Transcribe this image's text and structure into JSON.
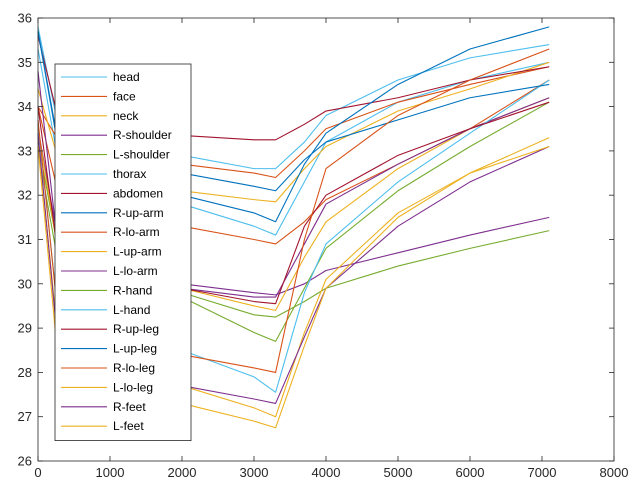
{
  "chart_data": {
    "type": "line",
    "title": "",
    "xlabel": "",
    "ylabel": "",
    "xlim": [
      0,
      8000
    ],
    "ylim": [
      26,
      36
    ],
    "x_ticks": [
      0,
      1000,
      2000,
      3000,
      4000,
      5000,
      6000,
      7000,
      8000
    ],
    "y_ticks": [
      26,
      27,
      28,
      29,
      30,
      31,
      32,
      33,
      34,
      35,
      36
    ],
    "grid": false,
    "legend_position": "top-left",
    "colors": [
      "#4DBEEE",
      "#D95319",
      "#EDB120",
      "#7E2F8E",
      "#77AC30",
      "#4DBEEE",
      "#A2142F",
      "#0072BD",
      "#D95319",
      "#EDB120",
      "#7E2F8E",
      "#77AC30",
      "#4DBEEE",
      "#A2142F",
      "#0072BD",
      "#D95319",
      "#EDB120",
      "#7E2F8E",
      "#EDB120"
    ],
    "series": [
      {
        "name": "head",
        "points": [
          [
            0,
            35.3
          ],
          [
            300,
            32.6
          ],
          [
            1000,
            32.3
          ],
          [
            2000,
            31.8
          ],
          [
            3000,
            31.3
          ],
          [
            3300,
            31.1
          ],
          [
            3700,
            32.3
          ],
          [
            4000,
            33.2
          ],
          [
            5000,
            34.1
          ],
          [
            6000,
            34.6
          ],
          [
            7100,
            35.0
          ]
        ]
      },
      {
        "name": "face",
        "points": [
          [
            0,
            34.0
          ],
          [
            300,
            33.2
          ],
          [
            1000,
            33.0
          ],
          [
            2000,
            32.7
          ],
          [
            3000,
            32.5
          ],
          [
            3300,
            32.4
          ],
          [
            3700,
            33.0
          ],
          [
            4000,
            33.5
          ],
          [
            5000,
            34.1
          ],
          [
            6000,
            34.5
          ],
          [
            7100,
            34.9
          ]
        ]
      },
      {
        "name": "neck",
        "points": [
          [
            0,
            34.4
          ],
          [
            300,
            32.7
          ],
          [
            1000,
            32.5
          ],
          [
            2000,
            32.1
          ],
          [
            3000,
            31.9
          ],
          [
            3300,
            31.85
          ],
          [
            3700,
            32.6
          ],
          [
            4000,
            33.1
          ],
          [
            5000,
            33.9
          ],
          [
            6000,
            34.4
          ],
          [
            7100,
            35.0
          ]
        ]
      },
      {
        "name": "R-shoulder",
        "points": [
          [
            0,
            33.5
          ],
          [
            300,
            30.8
          ],
          [
            1000,
            30.5
          ],
          [
            2000,
            30.0
          ],
          [
            3000,
            29.8
          ],
          [
            3300,
            29.75
          ],
          [
            3700,
            30.0
          ],
          [
            4000,
            30.3
          ],
          [
            5000,
            30.7
          ],
          [
            6000,
            31.1
          ],
          [
            7100,
            31.5
          ]
        ]
      },
      {
        "name": "L-shoulder",
        "points": [
          [
            0,
            33.2
          ],
          [
            300,
            30.6
          ],
          [
            1000,
            30.2
          ],
          [
            2000,
            29.8
          ],
          [
            3000,
            29.3
          ],
          [
            3300,
            29.25
          ],
          [
            3700,
            29.6
          ],
          [
            4000,
            29.9
          ],
          [
            5000,
            30.4
          ],
          [
            6000,
            30.8
          ],
          [
            7100,
            31.2
          ]
        ]
      },
      {
        "name": "thorax",
        "points": [
          [
            0,
            35.8
          ],
          [
            300,
            33.4
          ],
          [
            1000,
            33.2
          ],
          [
            2000,
            32.9
          ],
          [
            3000,
            32.6
          ],
          [
            3300,
            32.6
          ],
          [
            3700,
            33.2
          ],
          [
            4000,
            33.8
          ],
          [
            5000,
            34.6
          ],
          [
            6000,
            35.1
          ],
          [
            7100,
            35.4
          ]
        ]
      },
      {
        "name": "abdomen",
        "points": [
          [
            0,
            35.6
          ],
          [
            300,
            33.6
          ],
          [
            1000,
            33.5
          ],
          [
            2000,
            33.35
          ],
          [
            3000,
            33.25
          ],
          [
            3300,
            33.25
          ],
          [
            3700,
            33.6
          ],
          [
            4000,
            33.9
          ],
          [
            5000,
            34.2
          ],
          [
            6000,
            34.6
          ],
          [
            7100,
            34.9
          ]
        ]
      },
      {
        "name": "R-up-arm",
        "points": [
          [
            0,
            35.7
          ],
          [
            300,
            32.9
          ],
          [
            1000,
            32.6
          ],
          [
            2000,
            32.0
          ],
          [
            3000,
            31.6
          ],
          [
            3300,
            31.4
          ],
          [
            3700,
            32.7
          ],
          [
            4000,
            33.4
          ],
          [
            5000,
            34.5
          ],
          [
            6000,
            35.3
          ],
          [
            7100,
            35.8
          ]
        ]
      },
      {
        "name": "R-lo-arm",
        "points": [
          [
            0,
            34.0
          ],
          [
            300,
            31.9
          ],
          [
            1000,
            31.6
          ],
          [
            2000,
            31.3
          ],
          [
            3000,
            31.0
          ],
          [
            3300,
            30.9
          ],
          [
            3700,
            31.4
          ],
          [
            4000,
            31.9
          ],
          [
            5000,
            32.7
          ],
          [
            6000,
            33.5
          ],
          [
            7100,
            34.6
          ]
        ]
      },
      {
        "name": "L-up-arm",
        "points": [
          [
            0,
            33.5
          ],
          [
            300,
            30.5
          ],
          [
            1000,
            30.3
          ],
          [
            2000,
            29.9
          ],
          [
            3000,
            29.5
          ],
          [
            3300,
            29.4
          ],
          [
            3700,
            30.6
          ],
          [
            4000,
            31.4
          ],
          [
            5000,
            32.6
          ],
          [
            6000,
            33.5
          ],
          [
            7100,
            34.2
          ]
        ]
      },
      {
        "name": "L-lo-arm",
        "points": [
          [
            0,
            34.8
          ],
          [
            300,
            30.5
          ],
          [
            1000,
            30.3
          ],
          [
            2000,
            29.9
          ],
          [
            3000,
            29.7
          ],
          [
            3300,
            29.7
          ],
          [
            3700,
            30.9
          ],
          [
            4000,
            31.8
          ],
          [
            5000,
            32.7
          ],
          [
            6000,
            33.5
          ],
          [
            7100,
            34.2
          ]
        ]
      },
      {
        "name": "R-hand",
        "points": [
          [
            0,
            33.0
          ],
          [
            300,
            30.3
          ],
          [
            1000,
            30.1
          ],
          [
            2000,
            29.7
          ],
          [
            3000,
            28.9
          ],
          [
            3300,
            28.7
          ],
          [
            3700,
            29.9
          ],
          [
            4000,
            30.8
          ],
          [
            5000,
            32.1
          ],
          [
            6000,
            33.1
          ],
          [
            7100,
            34.1
          ]
        ]
      },
      {
        "name": "L-hand",
        "points": [
          [
            0,
            33.6
          ],
          [
            300,
            29.0
          ],
          [
            1000,
            28.8
          ],
          [
            2000,
            28.5
          ],
          [
            3000,
            27.9
          ],
          [
            3300,
            27.55
          ],
          [
            3700,
            29.8
          ],
          [
            4000,
            30.9
          ],
          [
            5000,
            32.3
          ],
          [
            6000,
            33.4
          ],
          [
            7100,
            34.6
          ]
        ]
      },
      {
        "name": "R-up-leg",
        "points": [
          [
            0,
            34.0
          ],
          [
            300,
            30.4
          ],
          [
            1000,
            30.2
          ],
          [
            2000,
            29.9
          ],
          [
            3000,
            29.6
          ],
          [
            3300,
            29.55
          ],
          [
            3700,
            31.3
          ],
          [
            4000,
            32.0
          ],
          [
            5000,
            32.9
          ],
          [
            6000,
            33.5
          ],
          [
            7100,
            34.1
          ]
        ]
      },
      {
        "name": "L-up-leg",
        "points": [
          [
            0,
            35.7
          ],
          [
            300,
            33.0
          ],
          [
            1000,
            32.8
          ],
          [
            2000,
            32.5
          ],
          [
            3000,
            32.2
          ],
          [
            3300,
            32.1
          ],
          [
            3700,
            32.8
          ],
          [
            4000,
            33.2
          ],
          [
            5000,
            33.7
          ],
          [
            6000,
            34.2
          ],
          [
            7100,
            34.5
          ]
        ]
      },
      {
        "name": "R-lo-leg",
        "points": [
          [
            0,
            33.7
          ],
          [
            300,
            28.9
          ],
          [
            1000,
            28.7
          ],
          [
            2000,
            28.4
          ],
          [
            3000,
            28.1
          ],
          [
            3300,
            28.0
          ],
          [
            3700,
            31.0
          ],
          [
            4000,
            32.6
          ],
          [
            5000,
            33.8
          ],
          [
            6000,
            34.6
          ],
          [
            7100,
            35.3
          ]
        ]
      },
      {
        "name": "L-lo-leg",
        "points": [
          [
            0,
            33.3
          ],
          [
            300,
            28.4
          ],
          [
            1000,
            28.1
          ],
          [
            2000,
            27.7
          ],
          [
            3000,
            27.2
          ],
          [
            3300,
            27.0
          ],
          [
            3700,
            28.9
          ],
          [
            4000,
            30.1
          ],
          [
            5000,
            31.6
          ],
          [
            6000,
            32.5
          ],
          [
            7100,
            33.3
          ]
        ]
      },
      {
        "name": "R-feet",
        "points": [
          [
            0,
            33.4
          ],
          [
            300,
            28.2
          ],
          [
            1000,
            28.0
          ],
          [
            2000,
            27.7
          ],
          [
            3000,
            27.4
          ],
          [
            3300,
            27.3
          ],
          [
            3700,
            28.8
          ],
          [
            4000,
            29.9
          ],
          [
            5000,
            31.3
          ],
          [
            6000,
            32.3
          ],
          [
            7100,
            33.1
          ]
        ]
      },
      {
        "name": "L-feet",
        "points": [
          [
            0,
            33.1
          ],
          [
            300,
            27.9
          ],
          [
            1000,
            27.7
          ],
          [
            2000,
            27.3
          ],
          [
            3000,
            26.9
          ],
          [
            3300,
            26.75
          ],
          [
            3700,
            28.6
          ],
          [
            4000,
            29.9
          ],
          [
            5000,
            31.5
          ],
          [
            6000,
            32.5
          ],
          [
            7100,
            33.1
          ]
        ]
      }
    ]
  }
}
